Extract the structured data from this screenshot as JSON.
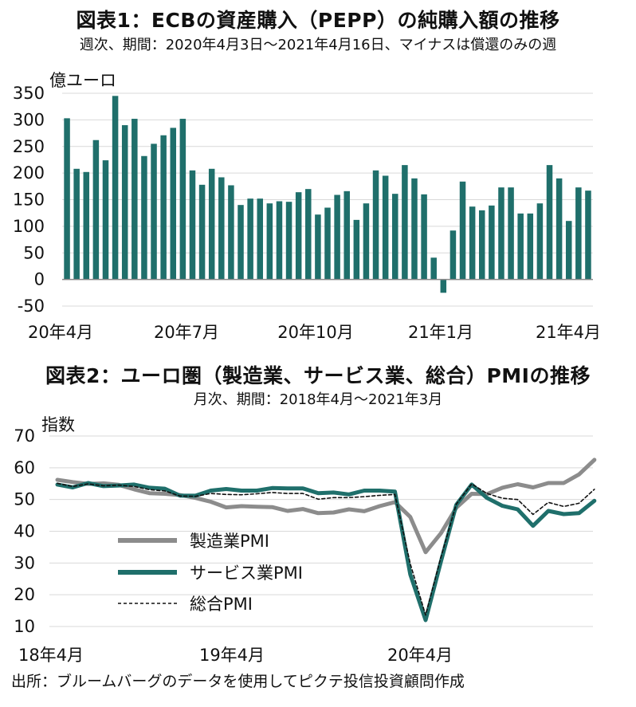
{
  "chart_data": [
    {
      "type": "bar",
      "title": "図表1：ECBの資産購入（PEPP）の純購入額の推移",
      "subtitle": "週次、期間：2020年4月3日～2021年4月16日、マイナスは償還のみの週",
      "ylabel": "億ユーロ",
      "ylim": [
        -50,
        350
      ],
      "yticks": [
        "350",
        "300",
        "250",
        "200",
        "150",
        "100",
        "50",
        "0",
        "-50"
      ],
      "xtick_labels": [
        "20年4月",
        "20年7月",
        "20年10月",
        "21年1月",
        "21年4月"
      ],
      "grid": true,
      "color": "#1f6f6b",
      "values": [
        303,
        208,
        202,
        262,
        224,
        345,
        290,
        302,
        232,
        255,
        271,
        285,
        302,
        205,
        178,
        208,
        192,
        177,
        140,
        152,
        152,
        143,
        147,
        146,
        164,
        170,
        122,
        135,
        159,
        166,
        112,
        143,
        205,
        195,
        161,
        215,
        190,
        160,
        41,
        -25,
        92,
        184,
        137,
        130,
        139,
        173,
        173,
        124,
        124,
        143,
        215,
        190,
        110,
        173,
        167
      ]
    },
    {
      "type": "line",
      "title": "図表2：ユーロ圏（製造業、サービス業、総合）PMIの推移",
      "subtitle": "月次、期間：2018年4月～2021年3月",
      "ylabel": "指数",
      "ylim": [
        10,
        70
      ],
      "yticks": [
        "70",
        "60",
        "50",
        "40",
        "30",
        "20",
        "10"
      ],
      "xtick_labels": [
        "18年4月",
        "19年4月",
        "20年4月"
      ],
      "grid": true,
      "series": [
        {
          "name": "製造業PMI",
          "color": "#8c8c8c",
          "style": "solid-thick",
          "values": [
            56.2,
            55.5,
            54.9,
            55.1,
            54.6,
            53.2,
            52.0,
            51.8,
            51.4,
            50.5,
            49.3,
            47.5,
            47.9,
            47.7,
            47.6,
            46.4,
            47.0,
            45.7,
            45.9,
            46.9,
            46.3,
            47.9,
            49.2,
            44.5,
            33.4,
            39.4,
            47.4,
            51.8,
            51.7,
            53.7,
            54.8,
            53.8,
            55.2,
            55.2,
            57.9,
            62.5
          ]
        },
        {
          "name": "サービス業PMI",
          "color": "#1f6f6b",
          "style": "solid-thick",
          "values": [
            54.7,
            53.8,
            55.2,
            54.2,
            54.4,
            54.7,
            53.7,
            53.4,
            51.2,
            51.2,
            52.8,
            53.3,
            52.8,
            52.8,
            53.6,
            53.5,
            53.5,
            52.0,
            52.2,
            51.6,
            52.8,
            52.8,
            52.5,
            26.4,
            12.0,
            30.5,
            48.3,
            54.7,
            50.5,
            48.0,
            46.9,
            41.7,
            46.4,
            45.4,
            45.7,
            49.6
          ]
        },
        {
          "name": "総合PMI",
          "color": "#111111",
          "style": "dashed",
          "values": [
            55.1,
            54.1,
            54.9,
            54.3,
            54.5,
            54.1,
            53.1,
            52.7,
            51.1,
            51.0,
            51.9,
            51.6,
            51.5,
            51.8,
            52.2,
            51.9,
            51.9,
            50.1,
            50.6,
            50.6,
            50.9,
            51.3,
            51.6,
            29.7,
            13.6,
            31.9,
            48.5,
            54.9,
            51.9,
            50.4,
            50.0,
            45.3,
            49.1,
            47.8,
            48.8,
            53.2
          ]
        }
      ]
    }
  ],
  "source": "出所：ブルームバーグのデータを使用してピクテ投信投資顧問作成"
}
